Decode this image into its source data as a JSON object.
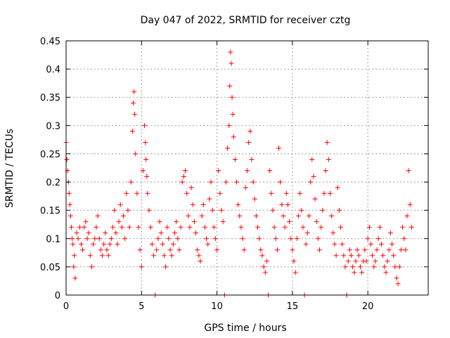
{
  "chart_data": {
    "type": "scatter",
    "title": "Day 047 of 2022, SRMTID for receiver cztg",
    "xlabel": "GPS time / hours",
    "ylabel": "SRMTID / TECUs",
    "xlim": [
      0,
      24
    ],
    "ylim": [
      0,
      0.45
    ],
    "xticks": [
      0,
      5,
      10,
      15,
      20
    ],
    "yticks": [
      0,
      0.05,
      0.1,
      0.15,
      0.2,
      0.25,
      0.3,
      0.35,
      0.4,
      0.45
    ],
    "grid": true,
    "marker": "+",
    "color": "#ff0000",
    "series": [
      {
        "name": "SRMTID",
        "points": [
          [
            0.0,
            0.27
          ],
          [
            0.05,
            0.24
          ],
          [
            0.1,
            0.22
          ],
          [
            0.15,
            0.2
          ],
          [
            0.2,
            0.18
          ],
          [
            0.25,
            0.16
          ],
          [
            0.3,
            0.14
          ],
          [
            0.35,
            0.12
          ],
          [
            0.4,
            0.1
          ],
          [
            0.45,
            0.09
          ],
          [
            0.5,
            0.05
          ],
          [
            0.55,
            0.07
          ],
          [
            0.6,
            0.03
          ],
          [
            0.7,
            0.11
          ],
          [
            0.8,
            0.1
          ],
          [
            0.9,
            0.12
          ],
          [
            1.0,
            0.09
          ],
          [
            1.1,
            0.08
          ],
          [
            1.2,
            0.12
          ],
          [
            1.3,
            0.13
          ],
          [
            1.4,
            0.1
          ],
          [
            1.5,
            0.11
          ],
          [
            1.6,
            0.07
          ],
          [
            1.7,
            0.05
          ],
          [
            1.8,
            0.09
          ],
          [
            1.9,
            0.1
          ],
          [
            2.0,
            0.12
          ],
          [
            2.1,
            0.14
          ],
          [
            2.2,
            0.1
          ],
          [
            2.3,
            0.08
          ],
          [
            2.4,
            0.07
          ],
          [
            2.5,
            0.09
          ],
          [
            2.6,
            0.11
          ],
          [
            2.7,
            0.08
          ],
          [
            2.8,
            0.07
          ],
          [
            2.9,
            0.09
          ],
          [
            3.0,
            0.1
          ],
          [
            3.1,
            0.12
          ],
          [
            3.2,
            0.15
          ],
          [
            3.3,
            0.11
          ],
          [
            3.4,
            0.09
          ],
          [
            3.5,
            0.13
          ],
          [
            3.6,
            0.16
          ],
          [
            3.7,
            0.12
          ],
          [
            3.8,
            0.14
          ],
          [
            3.9,
            0.1
          ],
          [
            4.0,
            0.18
          ],
          [
            4.1,
            0.15
          ],
          [
            4.2,
            0.12
          ],
          [
            4.3,
            0.2
          ],
          [
            4.4,
            0.29
          ],
          [
            4.45,
            0.34
          ],
          [
            4.5,
            0.36
          ],
          [
            4.55,
            0.32
          ],
          [
            4.6,
            0.25
          ],
          [
            4.7,
            0.18
          ],
          [
            4.8,
            0.12
          ],
          [
            4.9,
            0.08
          ],
          [
            5.0,
            0.05
          ],
          [
            5.1,
            0.22
          ],
          [
            5.2,
            0.3
          ],
          [
            5.25,
            0.27
          ],
          [
            5.3,
            0.24
          ],
          [
            5.35,
            0.21
          ],
          [
            5.4,
            0.18
          ],
          [
            5.5,
            0.15
          ],
          [
            5.6,
            0.12
          ],
          [
            5.7,
            0.09
          ],
          [
            5.8,
            0.07
          ],
          [
            5.9,
            0.0
          ],
          [
            6.0,
            0.08
          ],
          [
            6.1,
            0.1
          ],
          [
            6.2,
            0.13
          ],
          [
            6.3,
            0.11
          ],
          [
            6.4,
            0.09
          ],
          [
            6.5,
            0.07
          ],
          [
            6.6,
            0.05
          ],
          [
            6.7,
            0.12
          ],
          [
            6.8,
            0.1
          ],
          [
            6.9,
            0.08
          ],
          [
            7.0,
            0.07
          ],
          [
            7.1,
            0.09
          ],
          [
            7.2,
            0.11
          ],
          [
            7.3,
            0.13
          ],
          [
            7.4,
            0.1
          ],
          [
            7.5,
            0.08
          ],
          [
            7.6,
            0.12
          ],
          [
            7.7,
            0.2
          ],
          [
            7.8,
            0.21
          ],
          [
            7.9,
            0.22
          ],
          [
            8.0,
            0.18
          ],
          [
            8.1,
            0.14
          ],
          [
            8.2,
            0.12
          ],
          [
            8.3,
            0.19
          ],
          [
            8.4,
            0.16
          ],
          [
            8.5,
            0.13
          ],
          [
            8.6,
            0.11
          ],
          [
            8.7,
            0.08
          ],
          [
            8.8,
            0.07
          ],
          [
            8.9,
            0.06
          ],
          [
            9.0,
            0.14
          ],
          [
            9.1,
            0.16
          ],
          [
            9.2,
            0.12
          ],
          [
            9.3,
            0.1
          ],
          [
            9.4,
            0.09
          ],
          [
            9.5,
            0.17
          ],
          [
            9.6,
            0.2
          ],
          [
            9.7,
            0.15
          ],
          [
            9.8,
            0.12
          ],
          [
            9.9,
            0.1
          ],
          [
            10.0,
            0.08
          ],
          [
            10.1,
            0.22
          ],
          [
            10.2,
            0.18
          ],
          [
            10.3,
            0.15
          ],
          [
            10.4,
            0.13
          ],
          [
            10.5,
            0.0
          ],
          [
            10.6,
            0.2
          ],
          [
            10.7,
            0.26
          ],
          [
            10.8,
            0.3
          ],
          [
            10.85,
            0.37
          ],
          [
            10.9,
            0.43
          ],
          [
            10.95,
            0.41
          ],
          [
            11.0,
            0.35
          ],
          [
            11.05,
            0.32
          ],
          [
            11.1,
            0.28
          ],
          [
            11.2,
            0.24
          ],
          [
            11.3,
            0.2
          ],
          [
            11.4,
            0.16
          ],
          [
            11.5,
            0.14
          ],
          [
            11.6,
            0.12
          ],
          [
            11.7,
            0.1
          ],
          [
            11.8,
            0.08
          ],
          [
            11.9,
            0.19
          ],
          [
            12.0,
            0.22
          ],
          [
            12.1,
            0.27
          ],
          [
            12.2,
            0.29
          ],
          [
            12.3,
            0.24
          ],
          [
            12.4,
            0.2
          ],
          [
            12.5,
            0.17
          ],
          [
            12.6,
            0.14
          ],
          [
            12.7,
            0.12
          ],
          [
            12.8,
            0.1
          ],
          [
            12.9,
            0.08
          ],
          [
            13.0,
            0.07
          ],
          [
            13.1,
            0.05
          ],
          [
            13.2,
            0.04
          ],
          [
            13.3,
            0.06
          ],
          [
            13.4,
            0.0
          ],
          [
            13.5,
            0.22
          ],
          [
            13.6,
            0.18
          ],
          [
            13.7,
            0.15
          ],
          [
            13.8,
            0.12
          ],
          [
            13.9,
            0.1
          ],
          [
            14.0,
            0.08
          ],
          [
            14.1,
            0.26
          ],
          [
            14.2,
            0.2
          ],
          [
            14.3,
            0.16
          ],
          [
            14.4,
            0.14
          ],
          [
            14.5,
            0.12
          ],
          [
            14.6,
            0.18
          ],
          [
            14.7,
            0.16
          ],
          [
            14.8,
            0.13
          ],
          [
            14.9,
            0.1
          ],
          [
            15.0,
            0.08
          ],
          [
            15.1,
            0.06
          ],
          [
            15.2,
            0.04
          ],
          [
            15.3,
            0.1
          ],
          [
            15.4,
            0.14
          ],
          [
            15.5,
            0.18
          ],
          [
            15.6,
            0.15
          ],
          [
            15.7,
            0.12
          ],
          [
            15.8,
            0.0
          ],
          [
            15.9,
            0.09
          ],
          [
            16.0,
            0.11
          ],
          [
            16.1,
            0.14
          ],
          [
            16.2,
            0.2
          ],
          [
            16.3,
            0.24
          ],
          [
            16.4,
            0.21
          ],
          [
            16.5,
            0.17
          ],
          [
            16.6,
            0.13
          ],
          [
            16.7,
            0.1
          ],
          [
            16.8,
            0.08
          ],
          [
            16.9,
            0.12
          ],
          [
            17.0,
            0.15
          ],
          [
            17.1,
            0.18
          ],
          [
            17.2,
            0.22
          ],
          [
            17.3,
            0.27
          ],
          [
            17.4,
            0.24
          ],
          [
            17.5,
            0.18
          ],
          [
            17.6,
            0.14
          ],
          [
            17.7,
            0.11
          ],
          [
            17.8,
            0.09
          ],
          [
            17.9,
            0.07
          ],
          [
            18.0,
            0.19
          ],
          [
            18.1,
            0.15
          ],
          [
            18.2,
            0.12
          ],
          [
            18.3,
            0.09
          ],
          [
            18.4,
            0.07
          ],
          [
            18.5,
            0.05
          ],
          [
            18.6,
            0.0
          ],
          [
            18.7,
            0.06
          ],
          [
            18.8,
            0.08
          ],
          [
            18.9,
            0.07
          ],
          [
            19.0,
            0.05
          ],
          [
            19.1,
            0.04
          ],
          [
            19.2,
            0.06
          ],
          [
            19.3,
            0.08
          ],
          [
            19.4,
            0.07
          ],
          [
            19.5,
            0.05
          ],
          [
            19.6,
            0.04
          ],
          [
            19.7,
            0.06
          ],
          [
            19.8,
            0.08
          ],
          [
            19.9,
            0.06
          ],
          [
            20.0,
            0.1
          ],
          [
            20.1,
            0.12
          ],
          [
            20.2,
            0.09
          ],
          [
            20.3,
            0.07
          ],
          [
            20.4,
            0.05
          ],
          [
            20.5,
            0.06
          ],
          [
            20.6,
            0.08
          ],
          [
            20.7,
            0.1
          ],
          [
            20.8,
            0.12
          ],
          [
            20.9,
            0.09
          ],
          [
            21.0,
            0.07
          ],
          [
            21.1,
            0.05
          ],
          [
            21.2,
            0.04
          ],
          [
            21.3,
            0.06
          ],
          [
            21.4,
            0.08
          ],
          [
            21.5,
            0.11
          ],
          [
            21.6,
            0.09
          ],
          [
            21.7,
            0.07
          ],
          [
            21.8,
            0.05
          ],
          [
            21.9,
            0.03
          ],
          [
            22.0,
            0.02
          ],
          [
            22.1,
            0.05
          ],
          [
            22.2,
            0.08
          ],
          [
            22.3,
            0.12
          ],
          [
            22.4,
            0.1
          ],
          [
            22.5,
            0.08
          ],
          [
            22.6,
            0.14
          ],
          [
            22.7,
            0.22
          ],
          [
            22.8,
            0.16
          ],
          [
            22.9,
            0.12
          ]
        ]
      }
    ]
  }
}
